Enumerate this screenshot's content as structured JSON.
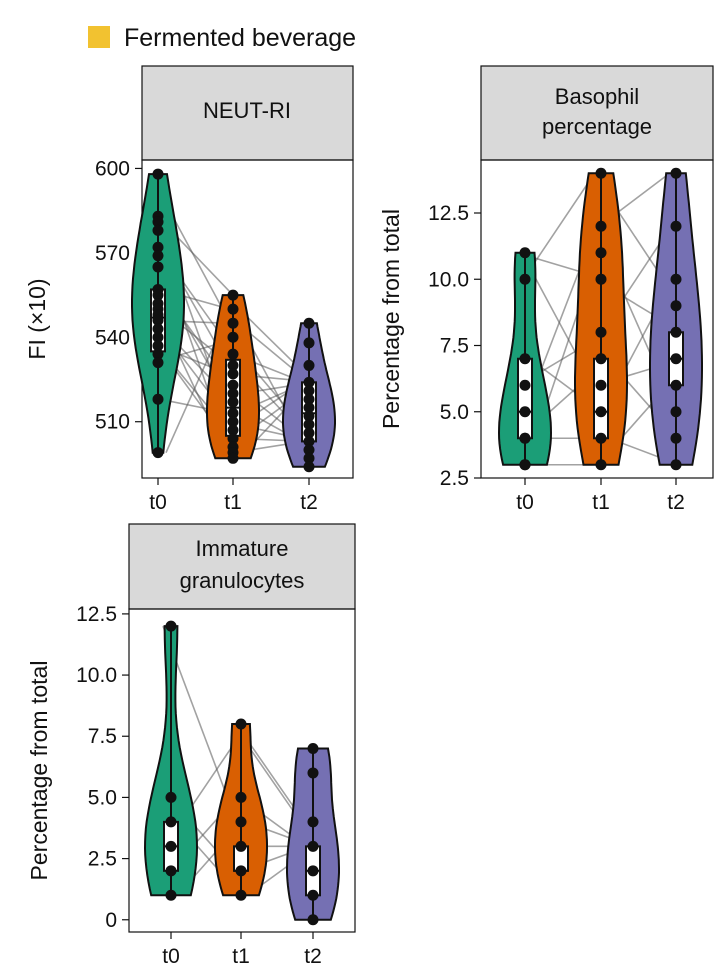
{
  "legend": {
    "label": "Fermented beverage",
    "color": "#f2c230"
  },
  "colors": {
    "t0": "#1b9e77",
    "t1": "#d95f02",
    "t2": "#7570b3",
    "strip": "#d9d9d9"
  },
  "chart_data": [
    {
      "type": "violin",
      "title": "NEUT-RI",
      "ylabel": "FI (×10)",
      "ylim": [
        490,
        603
      ],
      "yticks": [
        510,
        540,
        570,
        600
      ],
      "categories": [
        "t0",
        "t1",
        "t2"
      ],
      "series": [
        {
          "category": "t0",
          "min": 499,
          "q1": 535,
          "median": 547,
          "q3": 557,
          "max": 598,
          "points": [
            598,
            583,
            581,
            578,
            572,
            569,
            565,
            557,
            555,
            552,
            550,
            548,
            546,
            543,
            540,
            537,
            534,
            531,
            518,
            499
          ]
        },
        {
          "category": "t1",
          "min": 497,
          "q1": 505,
          "median": 515,
          "q3": 532,
          "max": 555,
          "points": [
            555,
            550,
            545,
            540,
            534,
            530,
            527,
            523,
            520,
            517,
            513,
            510,
            507,
            504,
            501,
            499,
            497
          ]
        },
        {
          "category": "t2",
          "min": 494,
          "q1": 503,
          "median": 513,
          "q3": 524,
          "max": 545,
          "points": [
            545,
            538,
            530,
            524,
            521,
            518,
            515,
            512,
            509,
            506,
            503,
            500,
            497,
            494
          ]
        }
      ]
    },
    {
      "type": "violin",
      "title": "Basophil percentage",
      "ylabel": "Percentage from total",
      "ylim": [
        2.5,
        14.5
      ],
      "yticks": [
        2.5,
        5.0,
        7.5,
        10.0,
        12.5
      ],
      "categories": [
        "t0",
        "t1",
        "t2"
      ],
      "series": [
        {
          "category": "t0",
          "min": 3,
          "q1": 4,
          "median": 5,
          "q3": 7,
          "max": 11,
          "points": [
            11,
            10,
            7,
            6,
            5,
            4,
            4,
            3,
            3
          ]
        },
        {
          "category": "t1",
          "min": 3,
          "q1": 4,
          "median": 5,
          "q3": 7,
          "max": 14,
          "points": [
            14,
            12,
            11,
            10,
            8,
            7,
            6,
            5,
            4,
            3
          ]
        },
        {
          "category": "t2",
          "min": 3,
          "q1": 6,
          "median": 7,
          "q3": 8,
          "max": 14,
          "points": [
            14,
            12,
            10,
            9,
            8,
            7,
            6,
            5,
            4,
            3
          ]
        }
      ]
    },
    {
      "type": "violin",
      "title": "Immature granulocytes",
      "ylabel": "Percentage from total",
      "ylim": [
        -0.5,
        12.7
      ],
      "yticks": [
        0,
        2.5,
        5.0,
        7.5,
        10.0,
        12.5
      ],
      "categories": [
        "t0",
        "t1",
        "t2"
      ],
      "series": [
        {
          "category": "t0",
          "min": 1,
          "q1": 2,
          "median": 3,
          "q3": 4,
          "max": 12,
          "points": [
            12,
            5,
            4,
            3,
            2,
            1
          ]
        },
        {
          "category": "t1",
          "min": 1,
          "q1": 2,
          "median": 2,
          "q3": 3,
          "max": 8,
          "points": [
            8,
            5,
            4,
            3,
            2,
            1
          ]
        },
        {
          "category": "t2",
          "min": 0,
          "q1": 1,
          "median": 2,
          "q3": 3,
          "max": 7,
          "points": [
            7,
            6,
            4,
            3,
            2,
            1,
            0
          ]
        }
      ]
    }
  ]
}
